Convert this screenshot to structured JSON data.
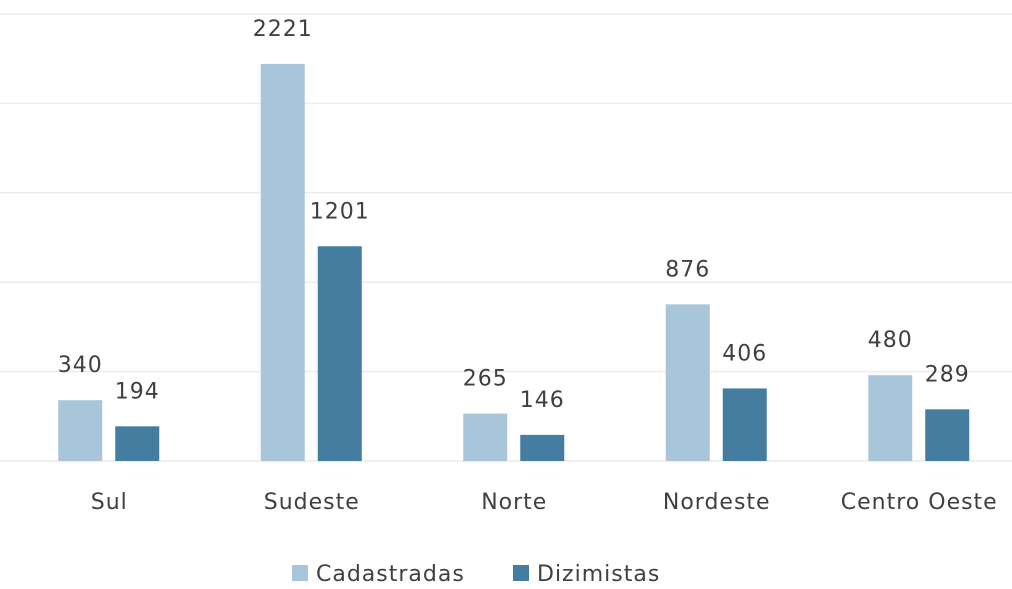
{
  "chart_data": {
    "type": "bar",
    "categories": [
      "Sul",
      "Sudeste",
      "Norte",
      "Nordeste",
      "Centro Oeste"
    ],
    "series": [
      {
        "name": "Cadastradas",
        "color": "#a9c5d9",
        "values": [
          340,
          2221,
          265,
          876,
          480
        ]
      },
      {
        "name": "Dizimistas",
        "color": "#447d9f",
        "values": [
          194,
          1201,
          146,
          406,
          289
        ]
      }
    ],
    "ylim": [
      0,
      2500
    ],
    "yticks": [
      0,
      500,
      1000,
      1500,
      2000,
      2500
    ],
    "grid": true,
    "legend": "bottom"
  }
}
